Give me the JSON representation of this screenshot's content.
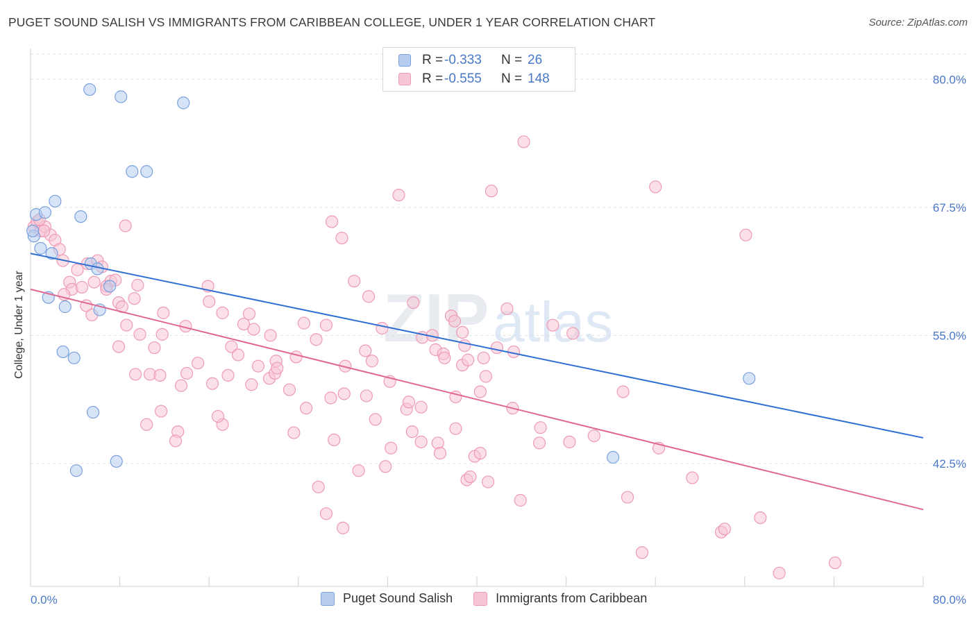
{
  "title": "PUGET SOUND SALISH VS IMMIGRANTS FROM CARIBBEAN COLLEGE, UNDER 1 YEAR CORRELATION CHART",
  "source": "Source: ZipAtlas.com",
  "watermark": {
    "zip": "ZIP",
    "atlas": "atlas"
  },
  "legend": {
    "rows": [
      {
        "r_label": "R =",
        "r_value": "-0.333",
        "n_label": "N =",
        "n_value": "26"
      },
      {
        "r_label": "R =",
        "r_value": "-0.555",
        "n_label": "N =",
        "n_value": "148"
      }
    ]
  },
  "colors": {
    "blue_fill": "#b7cdf0",
    "blue_stroke": "#7aa1dd",
    "blue_line": "#2e6fd1",
    "pink_fill": "#f7c6d6",
    "pink_stroke": "#ee9ab6",
    "pink_line": "#e0678f",
    "tick_text": "#4a78c8",
    "grid": "#e3e3e3"
  },
  "chart_data": {
    "type": "scatter",
    "title": "PUGET SOUND SALISH VS IMMIGRANTS FROM CARIBBEAN COLLEGE, UNDER 1 YEAR CORRELATION CHART",
    "xlabel": "",
    "ylabel": "College, Under 1 year",
    "xlim": [
      0,
      80
    ],
    "ylim": [
      30.5,
      83
    ],
    "x_ticks": [
      0,
      80
    ],
    "x_tick_labels": [
      "0.0%",
      "80.0%"
    ],
    "y_ticks": [
      42.5,
      55.0,
      67.5,
      80.0
    ],
    "y_tick_labels": [
      "42.5%",
      "55.0%",
      "67.5%",
      "80.0%"
    ],
    "grid": true,
    "legend_position": "top-center",
    "series": [
      {
        "name": "Puget Sound Salish",
        "points": [
          [
            5.3,
            79.0
          ],
          [
            8.1,
            78.3
          ],
          [
            13.7,
            77.7
          ],
          [
            9.1,
            71.0
          ],
          [
            10.4,
            71.0
          ],
          [
            2.2,
            68.1
          ],
          [
            0.5,
            66.8
          ],
          [
            1.3,
            67.0
          ],
          [
            4.5,
            66.6
          ],
          [
            0.3,
            64.7
          ],
          [
            0.9,
            63.5
          ],
          [
            1.9,
            63.0
          ],
          [
            5.4,
            62.0
          ],
          [
            6.0,
            61.5
          ],
          [
            7.1,
            59.8
          ],
          [
            1.6,
            58.7
          ],
          [
            3.1,
            57.8
          ],
          [
            6.2,
            57.5
          ],
          [
            2.9,
            53.4
          ],
          [
            3.9,
            52.8
          ],
          [
            5.6,
            47.5
          ],
          [
            4.1,
            41.8
          ],
          [
            7.7,
            42.7
          ],
          [
            64.4,
            50.8
          ],
          [
            52.2,
            43.1
          ],
          [
            0.2,
            65.2
          ]
        ],
        "trend": {
          "x": [
            0,
            80
          ],
          "y": [
            63.0,
            45.0
          ]
        }
      },
      {
        "name": "Immigrants from Caribbean",
        "points": [
          [
            0.3,
            65.6
          ],
          [
            0.6,
            66.1
          ],
          [
            0.9,
            65.2
          ],
          [
            1.3,
            65.6
          ],
          [
            1.8,
            64.8
          ],
          [
            2.2,
            64.3
          ],
          [
            2.6,
            63.4
          ],
          [
            2.9,
            62.3
          ],
          [
            1.2,
            65.2
          ],
          [
            0.8,
            66.3
          ],
          [
            3.5,
            60.2
          ],
          [
            3.7,
            59.5
          ],
          [
            4.2,
            61.4
          ],
          [
            4.6,
            59.7
          ],
          [
            5.1,
            62.0
          ],
          [
            5.7,
            60.2
          ],
          [
            6.0,
            62.3
          ],
          [
            6.4,
            61.7
          ],
          [
            6.8,
            59.8
          ],
          [
            7.2,
            60.3
          ],
          [
            7.6,
            60.4
          ],
          [
            3.0,
            59.0
          ],
          [
            5.0,
            57.9
          ],
          [
            5.5,
            57.0
          ],
          [
            6.8,
            59.5
          ],
          [
            7.9,
            58.2
          ],
          [
            8.2,
            57.8
          ],
          [
            8.6,
            56.0
          ],
          [
            9.3,
            58.6
          ],
          [
            9.6,
            59.9
          ],
          [
            8.5,
            65.7
          ],
          [
            11.9,
            57.2
          ],
          [
            13.9,
            55.9
          ],
          [
            15.9,
            59.8
          ],
          [
            16.0,
            58.3
          ],
          [
            17.2,
            57.2
          ],
          [
            19.1,
            56.1
          ],
          [
            19.6,
            57.1
          ],
          [
            20.0,
            55.6
          ],
          [
            21.5,
            55.0
          ],
          [
            7.9,
            53.9
          ],
          [
            9.8,
            55.1
          ],
          [
            11.1,
            53.8
          ],
          [
            11.8,
            55.1
          ],
          [
            9.4,
            51.2
          ],
          [
            10.7,
            51.2
          ],
          [
            11.6,
            51.1
          ],
          [
            13.5,
            50.1
          ],
          [
            14.0,
            51.3
          ],
          [
            15.0,
            52.3
          ],
          [
            16.3,
            50.3
          ],
          [
            17.7,
            51.1
          ],
          [
            18.0,
            53.9
          ],
          [
            18.6,
            53.1
          ],
          [
            19.8,
            50.2
          ],
          [
            20.4,
            52.0
          ],
          [
            21.4,
            50.8
          ],
          [
            21.9,
            51.3
          ],
          [
            22.0,
            52.5
          ],
          [
            23.8,
            52.9
          ],
          [
            13.2,
            45.6
          ],
          [
            17.2,
            46.3
          ],
          [
            11.7,
            47.6
          ],
          [
            13.0,
            44.7
          ],
          [
            10.4,
            46.3
          ],
          [
            16.8,
            47.1
          ],
          [
            26.5,
            56.0
          ],
          [
            30.3,
            58.8
          ],
          [
            29.0,
            60.3
          ],
          [
            24.5,
            56.2
          ],
          [
            25.6,
            54.6
          ],
          [
            26.9,
            48.9
          ],
          [
            23.2,
            49.7
          ],
          [
            28.1,
            49.3
          ],
          [
            23.6,
            45.5
          ],
          [
            27.2,
            44.8
          ],
          [
            25.8,
            40.2
          ],
          [
            26.5,
            37.6
          ],
          [
            28.0,
            36.2
          ],
          [
            27.9,
            64.5
          ],
          [
            27.0,
            66.1
          ],
          [
            24.7,
            47.9
          ],
          [
            22.1,
            51.8
          ],
          [
            30.0,
            53.5
          ],
          [
            28.2,
            52.0
          ],
          [
            31.5,
            55.7
          ],
          [
            30.6,
            52.5
          ],
          [
            30.1,
            49.1
          ],
          [
            30.9,
            46.8
          ],
          [
            33.7,
            47.8
          ],
          [
            33.9,
            48.5
          ],
          [
            32.2,
            50.5
          ],
          [
            34.3,
            58.2
          ],
          [
            35.1,
            54.8
          ],
          [
            36.3,
            53.6
          ],
          [
            37.7,
            56.9
          ],
          [
            36.0,
            55.0
          ],
          [
            37.0,
            53.2
          ],
          [
            38.7,
            52.1
          ],
          [
            38.0,
            56.4
          ],
          [
            38.9,
            54.0
          ],
          [
            39.2,
            52.6
          ],
          [
            40.6,
            52.8
          ],
          [
            40.8,
            51.0
          ],
          [
            40.3,
            49.5
          ],
          [
            41.8,
            53.8
          ],
          [
            42.7,
            57.6
          ],
          [
            46.8,
            56.0
          ],
          [
            48.6,
            55.2
          ],
          [
            38.7,
            55.3
          ],
          [
            37.1,
            52.8
          ],
          [
            38.1,
            49.0
          ],
          [
            43.3,
            53.4
          ],
          [
            35.0,
            48.0
          ],
          [
            38.1,
            45.9
          ],
          [
            34.2,
            45.6
          ],
          [
            32.3,
            44.0
          ],
          [
            31.8,
            42.2
          ],
          [
            29.4,
            41.8
          ],
          [
            36.5,
            44.5
          ],
          [
            35.0,
            44.6
          ],
          [
            39.1,
            40.9
          ],
          [
            36.7,
            43.5
          ],
          [
            39.8,
            43.2
          ],
          [
            40.3,
            43.5
          ],
          [
            39.4,
            41.2
          ],
          [
            45.7,
            46.0
          ],
          [
            43.2,
            47.9
          ],
          [
            50.5,
            45.2
          ],
          [
            53.1,
            49.5
          ],
          [
            48.3,
            44.6
          ],
          [
            45.6,
            44.5
          ],
          [
            56.3,
            44.0
          ],
          [
            59.3,
            41.1
          ],
          [
            53.5,
            39.2
          ],
          [
            43.9,
            38.9
          ],
          [
            41.0,
            40.7
          ],
          [
            61.9,
            35.8
          ],
          [
            62.2,
            36.1
          ],
          [
            54.8,
            33.8
          ],
          [
            67.1,
            31.8
          ],
          [
            65.4,
            37.2
          ],
          [
            72.1,
            32.8
          ],
          [
            64.1,
            64.8
          ],
          [
            33.0,
            68.7
          ],
          [
            41.3,
            69.1
          ],
          [
            56.0,
            69.5
          ],
          [
            44.2,
            73.9
          ]
        ],
        "trend": {
          "x": [
            0,
            80
          ],
          "y": [
            59.5,
            38.0
          ]
        }
      }
    ]
  }
}
